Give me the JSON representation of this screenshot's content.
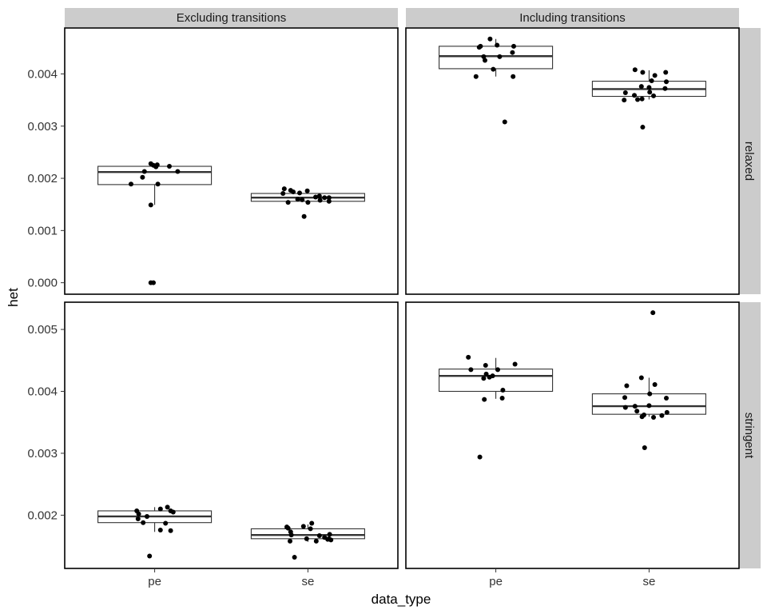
{
  "chart_data": {
    "type": "box",
    "facet_columns": [
      "Excluding transitions",
      "Including transitions"
    ],
    "facet_rows": [
      "relaxed",
      "stringent"
    ],
    "categories": [
      "pe",
      "se"
    ],
    "xlabel": "data_type",
    "ylabel": "het",
    "rows": [
      {
        "name": "relaxed",
        "ylim": [
          -0.00022,
          0.00488
        ],
        "yticks": [
          0.0,
          0.001,
          0.002,
          0.003,
          0.004
        ],
        "ytick_labels": [
          "0.000",
          "0.001",
          "0.002",
          "0.003",
          "0.004"
        ]
      },
      {
        "name": "stringent",
        "ylim": [
          0.00114,
          0.00544
        ],
        "yticks": [
          0.002,
          0.003,
          0.004,
          0.005
        ],
        "ytick_labels": [
          "0.002",
          "0.003",
          "0.004",
          "0.005"
        ]
      }
    ],
    "panels": [
      {
        "column": "Excluding transitions",
        "row": "relaxed",
        "boxes": [
          {
            "category": "pe",
            "q1": 0.00188,
            "median": 0.00212,
            "q3": 0.00223,
            "whisker_low": 0.00149,
            "whisker_high": 0.00227,
            "points": [
              [
                -0.37,
                0.00189
              ],
              [
                -0.16,
                0.00213
              ],
              [
                -0.19,
                0.00202
              ],
              [
                -0.06,
                0.00149
              ],
              [
                -0.06,
                0.00228
              ],
              [
                -0.02,
                0.00225
              ],
              [
                0.02,
                0.00222
              ],
              [
                0.04,
                0.00226
              ],
              [
                0.05,
                0.00189
              ],
              [
                0.23,
                0.00223
              ],
              [
                0.36,
                0.00213
              ],
              [
                -0.06,
                0.0
              ],
              [
                -0.02,
                0.0
              ]
            ]
          },
          {
            "category": "se",
            "q1": 0.00156,
            "median": 0.00163,
            "q3": 0.00171,
            "whisker_low": 0.00156,
            "whisker_high": 0.00176,
            "points": [
              [
                -0.39,
                0.00171
              ],
              [
                -0.37,
                0.0018
              ],
              [
                -0.31,
                0.00154
              ],
              [
                -0.27,
                0.00177
              ],
              [
                -0.23,
                0.00174
              ],
              [
                -0.16,
                0.0016
              ],
              [
                -0.13,
                0.00172
              ],
              [
                -0.09,
                0.00159
              ],
              [
                -0.06,
                0.00127
              ],
              [
                -0.01,
                0.00176
              ],
              [
                0.0,
                0.00154
              ],
              [
                0.12,
                0.00164
              ],
              [
                0.18,
                0.00166
              ],
              [
                0.19,
                0.00158
              ],
              [
                0.26,
                0.00163
              ],
              [
                0.33,
                0.00156
              ],
              [
                0.33,
                0.00163
              ]
            ]
          }
        ]
      },
      {
        "column": "Including transitions",
        "row": "relaxed",
        "boxes": [
          {
            "category": "pe",
            "q1": 0.0041,
            "median": 0.00434,
            "q3": 0.00453,
            "whisker_low": 0.00395,
            "whisker_high": 0.00467,
            "points": [
              [
                -0.31,
                0.00395
              ],
              [
                -0.26,
                0.00451
              ],
              [
                -0.24,
                0.00453
              ],
              [
                -0.19,
                0.00433
              ],
              [
                -0.17,
                0.00426
              ],
              [
                -0.09,
                0.00467
              ],
              [
                -0.04,
                0.00409
              ],
              [
                0.02,
                0.00455
              ],
              [
                0.06,
                0.00433
              ],
              [
                0.14,
                0.00308
              ],
              [
                0.26,
                0.00441
              ],
              [
                0.27,
                0.00395
              ],
              [
                0.28,
                0.00453
              ]
            ]
          },
          {
            "category": "se",
            "q1": 0.00357,
            "median": 0.00371,
            "q3": 0.00386,
            "whisker_low": 0.00351,
            "whisker_high": 0.00407,
            "points": [
              [
                -0.39,
                0.0035
              ],
              [
                -0.37,
                0.00364
              ],
              [
                -0.22,
                0.00408
              ],
              [
                -0.23,
                0.00359
              ],
              [
                -0.18,
                0.00351
              ],
              [
                -0.12,
                0.00376
              ],
              [
                -0.11,
                0.00352
              ],
              [
                -0.1,
                0.00403
              ],
              [
                -0.1,
                0.00298
              ],
              [
                0.0,
                0.00374
              ],
              [
                0.01,
                0.00365
              ],
              [
                0.04,
                0.00387
              ],
              [
                0.07,
                0.00358
              ],
              [
                0.09,
                0.00397
              ],
              [
                0.25,
                0.00372
              ],
              [
                0.26,
                0.00403
              ],
              [
                0.27,
                0.00385
              ]
            ]
          }
        ]
      },
      {
        "column": "Excluding transitions",
        "row": "stringent",
        "boxes": [
          {
            "category": "pe",
            "q1": 0.00188,
            "median": 0.00198,
            "q3": 0.00207,
            "whisker_low": 0.00173,
            "whisker_high": 0.00213,
            "points": [
              [
                -0.28,
                0.00207
              ],
              [
                -0.25,
                0.00202
              ],
              [
                -0.26,
                0.00194
              ],
              [
                -0.18,
                0.00188
              ],
              [
                -0.12,
                0.00198
              ],
              [
                -0.08,
                0.00134
              ],
              [
                0.09,
                0.00176
              ],
              [
                0.09,
                0.0021
              ],
              [
                0.17,
                0.00187
              ],
              [
                0.2,
                0.00213
              ],
              [
                0.25,
                0.00175
              ],
              [
                0.25,
                0.00207
              ],
              [
                0.29,
                0.00205
              ]
            ]
          },
          {
            "category": "se",
            "q1": 0.00162,
            "median": 0.00168,
            "q3": 0.00178,
            "whisker_low": 0.00157,
            "whisker_high": 0.00185,
            "points": [
              [
                -0.33,
                0.00181
              ],
              [
                -0.31,
                0.00179
              ],
              [
                -0.28,
                0.00158
              ],
              [
                -0.27,
                0.00173
              ],
              [
                -0.26,
                0.00168
              ],
              [
                -0.21,
                0.00132
              ],
              [
                -0.07,
                0.00182
              ],
              [
                -0.02,
                0.00162
              ],
              [
                0.04,
                0.00178
              ],
              [
                0.06,
                0.00187
              ],
              [
                0.13,
                0.00158
              ],
              [
                0.18,
                0.00167
              ],
              [
                0.26,
                0.00164
              ],
              [
                0.31,
                0.00161
              ],
              [
                0.34,
                0.00169
              ],
              [
                0.36,
                0.0016
              ],
              [
                0.33,
                0.00162
              ]
            ]
          }
        ]
      },
      {
        "column": "Including transitions",
        "row": "stringent",
        "boxes": [
          {
            "category": "pe",
            "q1": 0.004,
            "median": 0.00425,
            "q3": 0.00436,
            "whisker_low": 0.00388,
            "whisker_high": 0.00454,
            "points": [
              [
                -0.43,
                0.00455
              ],
              [
                -0.39,
                0.00435
              ],
              [
                -0.25,
                0.00294
              ],
              [
                -0.18,
                0.00387
              ],
              [
                -0.19,
                0.00421
              ],
              [
                -0.16,
                0.00442
              ],
              [
                -0.15,
                0.00428
              ],
              [
                -0.1,
                0.00423
              ],
              [
                -0.05,
                0.00425
              ],
              [
                0.03,
                0.00435
              ],
              [
                0.1,
                0.00389
              ],
              [
                0.11,
                0.00402
              ],
              [
                0.3,
                0.00444
              ]
            ]
          },
          {
            "category": "se",
            "q1": 0.00363,
            "median": 0.00376,
            "q3": 0.00396,
            "whisker_low": 0.00359,
            "whisker_high": 0.00422,
            "points": [
              [
                -0.38,
                0.0039
              ],
              [
                -0.37,
                0.00374
              ],
              [
                -0.35,
                0.00409
              ],
              [
                -0.22,
                0.00376
              ],
              [
                -0.19,
                0.00368
              ],
              [
                -0.12,
                0.00422
              ],
              [
                -0.11,
                0.00359
              ],
              [
                -0.08,
                0.00362
              ],
              [
                -0.07,
                0.00309
              ],
              [
                0.0,
                0.00377
              ],
              [
                0.01,
                0.00396
              ],
              [
                0.06,
                0.00527
              ],
              [
                0.07,
                0.00358
              ],
              [
                0.09,
                0.00411
              ],
              [
                0.2,
                0.00361
              ],
              [
                0.27,
                0.00389
              ],
              [
                0.28,
                0.00366
              ]
            ]
          }
        ]
      }
    ]
  }
}
